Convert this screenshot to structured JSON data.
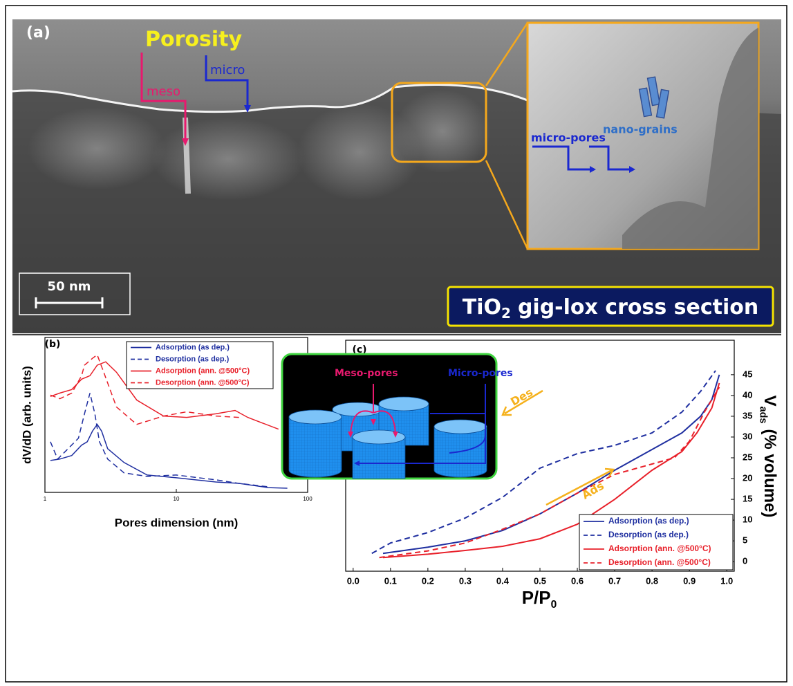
{
  "panel_a": {
    "label": "(a)",
    "porosity": "Porosity",
    "meso": "meso",
    "micro": "micro",
    "micro_pores": "micro-pores",
    "nano_grains": "nano-grains",
    "scale_bar": "50 nm",
    "caption": {
      "formula": "TiO",
      "subscript": "2",
      "rest": "gig-lox cross section"
    }
  },
  "chart_data": [
    {
      "type": "line",
      "label": "(b)",
      "xlabel": "Pores dimension (nm)",
      "ylabel": "dV/dD (arb. units)",
      "xlog": true,
      "xlim": [
        1,
        100
      ],
      "xticks": [
        1,
        10,
        100
      ],
      "ylim": [
        0,
        100
      ],
      "yticks": [],
      "legend": "upper right",
      "series": [
        {
          "name": "Adsorption (as dep.)",
          "color": "#1f2fa0",
          "linestyle": "solid",
          "x": [
            1.1,
            1.3,
            1.6,
            1.9,
            2.1,
            2.3,
            2.5,
            2.7,
            3,
            4,
            6,
            10,
            20,
            30,
            50,
            70
          ],
          "values": [
            20.6,
            21.5,
            23.8,
            30.5,
            32.7,
            39.5,
            43.9,
            39.5,
            28.2,
            19.3,
            11.2,
            9.4,
            6.7,
            5.8,
            3.1,
            2.7
          ]
        },
        {
          "name": "Desorption (as dep.)",
          "color": "#1f2fa0",
          "linestyle": "dashed",
          "x": [
            1.1,
            1.25,
            1.5,
            1.8,
            2.0,
            2.2,
            2.4,
            2.6,
            3,
            4,
            6,
            10,
            20,
            30,
            50
          ],
          "values": [
            32.7,
            21.5,
            28.2,
            35.0,
            50.7,
            64.1,
            50.7,
            32.7,
            21.5,
            12.6,
            10.3,
            11.2,
            8.1,
            5.8,
            3.6
          ]
        },
        {
          "name": "Adsorption (ann. @500°C)",
          "color": "#e8202a",
          "linestyle": "solid",
          "x": [
            1.1,
            1.3,
            1.6,
            1.9,
            2.2,
            2.5,
            2.9,
            3.5,
            5,
            8,
            12,
            20,
            28,
            35,
            60
          ],
          "values": [
            61.9,
            64.1,
            66.4,
            73.1,
            75.3,
            82.1,
            84.3,
            77.6,
            59.6,
            49.3,
            48.4,
            50.7,
            52.9,
            48.4,
            40.8
          ]
        },
        {
          "name": "Desorption (ann. @500°C)",
          "color": "#e8202a",
          "linestyle": "dashed",
          "x": [
            1.1,
            1.3,
            1.6,
            1.9,
            2.0,
            2.3,
            2.5,
            2.8,
            3.5,
            5,
            8,
            12,
            20,
            30
          ],
          "values": [
            62.8,
            60.5,
            64.1,
            75.3,
            82.1,
            86.5,
            88.8,
            77.6,
            55.2,
            43.9,
            49.3,
            52.0,
            49.3,
            48.4
          ]
        }
      ]
    },
    {
      "type": "line",
      "label": "(c)",
      "xlabel": {
        "text": "P/P",
        "subscript": "0"
      },
      "ylabel": {
        "text": "V",
        "subscript": "ads",
        "rest": "(% volume)"
      },
      "xlim": [
        -0.02,
        1.02
      ],
      "xticks": [
        {
          "value": 0,
          "label": "0.0"
        },
        0.1,
        0.2,
        0.3,
        0.4,
        0.5,
        0.6,
        0.7,
        0.8,
        0.9,
        {
          "value": 1,
          "label": "1.0"
        }
      ],
      "ylim": [
        -2.3,
        53.3
      ],
      "yticks": [
        0,
        5,
        10,
        15,
        20,
        25,
        30,
        35,
        40,
        45
      ],
      "y_axis_side": "right",
      "legend": "lower right",
      "annotations": [
        "Des",
        "Ads"
      ],
      "inset": {
        "labels": [
          "Meso-pores",
          "Micro-pores"
        ]
      },
      "series": [
        {
          "name": "Adsorption (as dep.)",
          "color": "#1f2fa0",
          "linestyle": "solid",
          "x": [
            0.08,
            0.2,
            0.3,
            0.4,
            0.5,
            0.6,
            0.7,
            0.8,
            0.88,
            0.93,
            0.96,
            0.98
          ],
          "values": [
            2,
            3.5,
            5,
            7.5,
            11.5,
            16.5,
            22,
            27,
            31,
            35,
            39,
            45
          ]
        },
        {
          "name": "Desorption (as dep.)",
          "color": "#1f2fa0",
          "linestyle": "dashed",
          "x": [
            0.05,
            0.1,
            0.2,
            0.3,
            0.4,
            0.5,
            0.6,
            0.7,
            0.8,
            0.88,
            0.93,
            0.97
          ],
          "values": [
            2,
            4.5,
            7,
            10.5,
            15.5,
            22.5,
            26,
            28,
            31,
            36,
            41,
            46
          ]
        },
        {
          "name": "Adsorption (ann. @500°C)",
          "color": "#e8202a",
          "linestyle": "solid",
          "x": [
            0.08,
            0.2,
            0.3,
            0.4,
            0.5,
            0.6,
            0.7,
            0.8,
            0.88,
            0.92,
            0.96,
            0.98
          ],
          "values": [
            1,
            1.8,
            2.7,
            3.7,
            5.5,
            9,
            15,
            22,
            26.5,
            31,
            37,
            43
          ]
        },
        {
          "name": "Desorption (ann. @500°C)",
          "color": "#e8202a",
          "linestyle": "dashed",
          "x": [
            0.07,
            0.2,
            0.3,
            0.4,
            0.5,
            0.6,
            0.7,
            0.8,
            0.86,
            0.9,
            0.94,
            0.98
          ],
          "values": [
            1,
            2.6,
            4.5,
            7.8,
            11.5,
            16.5,
            21,
            23.5,
            25,
            29,
            36,
            42
          ]
        }
      ]
    }
  ]
}
